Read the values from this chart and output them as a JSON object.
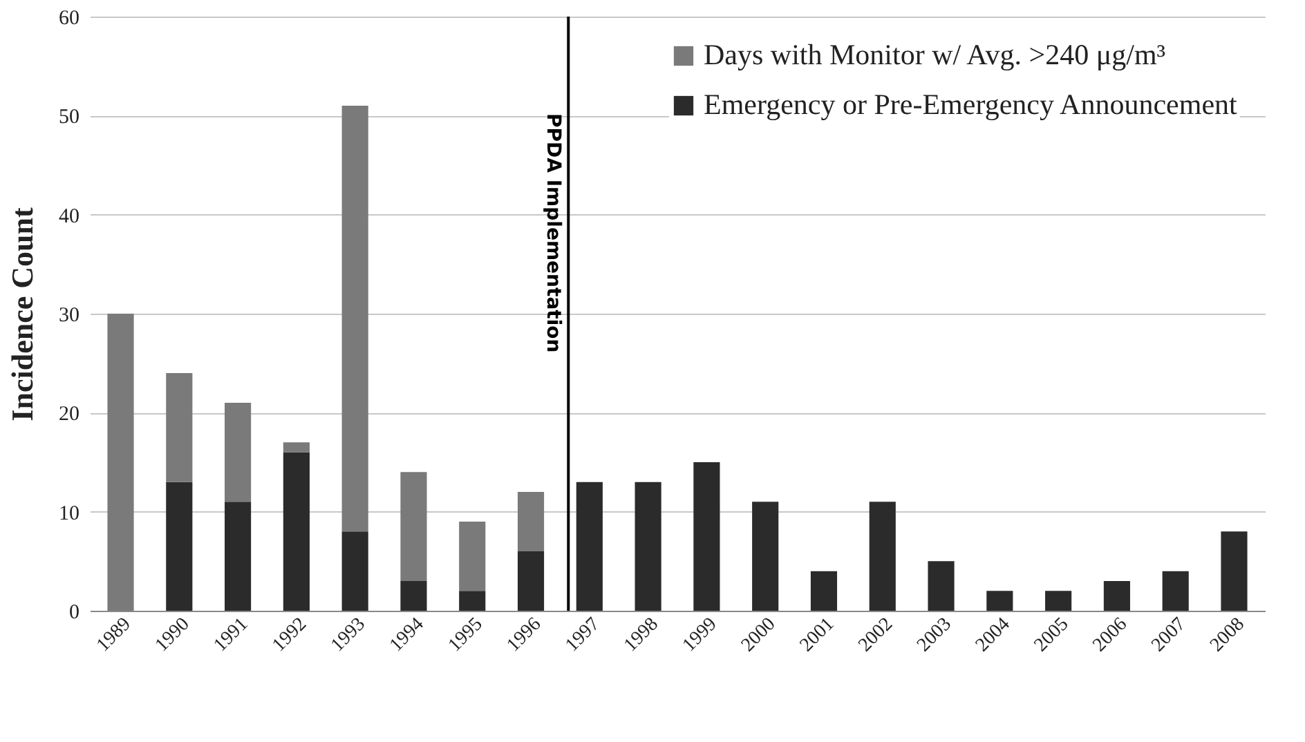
{
  "chart_data": {
    "type": "bar",
    "stacked": true,
    "ylabel": "Incidence Count",
    "categories": [
      "1989",
      "1990",
      "1991",
      "1992",
      "1993",
      "1994",
      "1995",
      "1996",
      "1997",
      "1998",
      "1999",
      "2000",
      "2001",
      "2002",
      "2003",
      "2004",
      "2005",
      "2006",
      "2007",
      "2008"
    ],
    "series": [
      {
        "name": "Emergency or Pre-Emergency Announcement",
        "color": "#2b2b2b",
        "values": [
          0,
          13,
          11,
          16,
          8,
          3,
          2,
          6,
          13,
          13,
          15,
          11,
          4,
          11,
          5,
          2,
          2,
          3,
          4,
          8
        ]
      },
      {
        "name": "Days with Monitor w/ Avg. >240 μg/m³",
        "color": "#7a7a7a",
        "values": [
          30,
          11,
          10,
          1,
          43,
          11,
          7,
          6,
          0,
          0,
          0,
          0,
          0,
          0,
          0,
          0,
          0,
          0,
          0,
          0
        ]
      }
    ],
    "ylim": [
      0,
      60
    ],
    "yticks": [
      0,
      10,
      20,
      30,
      40,
      50,
      60
    ],
    "grid": "y",
    "legend": "top right",
    "ref_lines": [
      {
        "axis": "x",
        "value": "1997",
        "label": "PPDA Implementation",
        "color": "#000000"
      }
    ]
  }
}
